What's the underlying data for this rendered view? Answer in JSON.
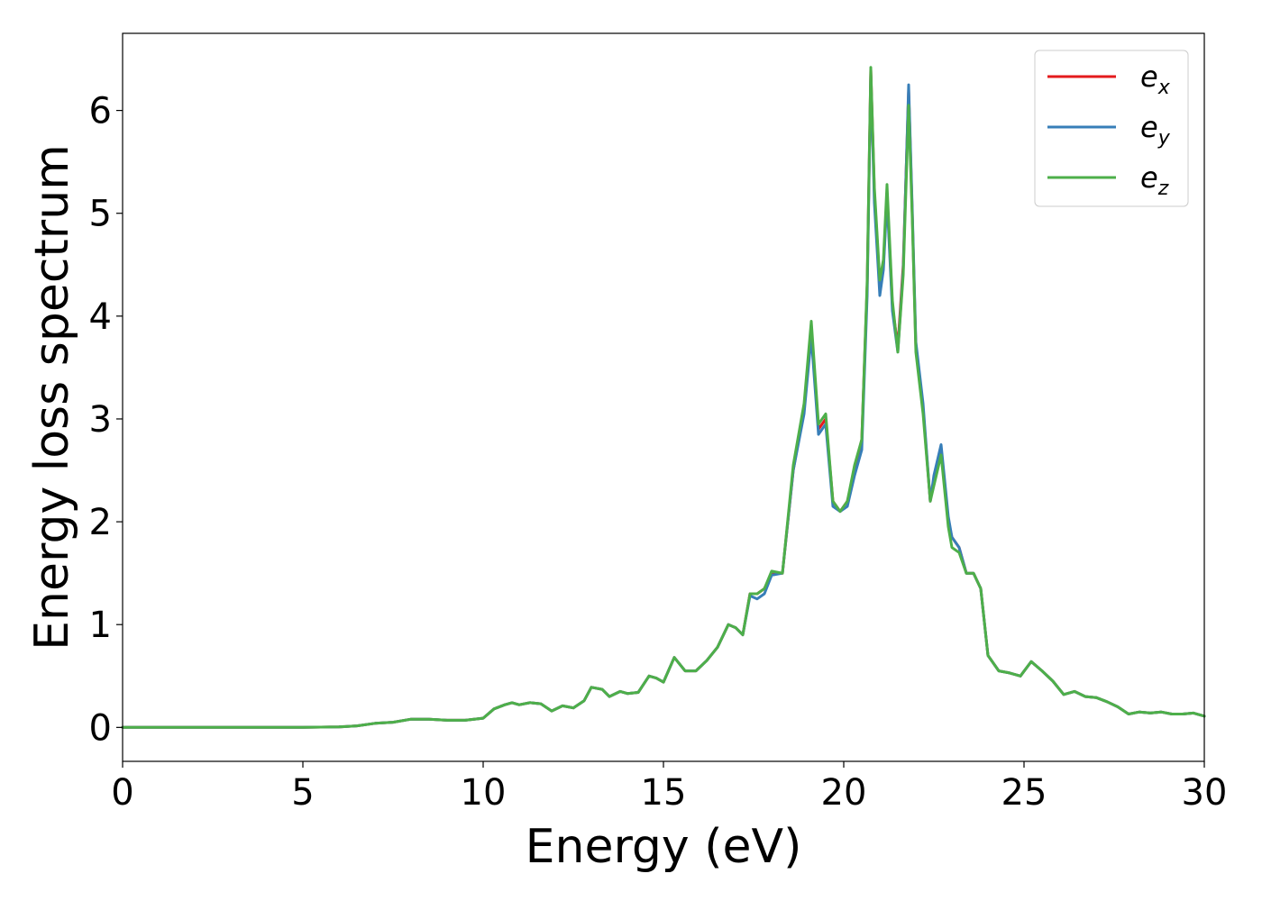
{
  "chart_data": {
    "type": "line",
    "title": "",
    "xlabel": "Energy (eV)",
    "ylabel": "Energy loss spectrum",
    "xlim": [
      0,
      30
    ],
    "ylim": [
      -0.33,
      6.75
    ],
    "xticks": [
      "0",
      "5",
      "10",
      "15",
      "20",
      "25",
      "30"
    ],
    "xtick_values": [
      0,
      5,
      10,
      15,
      20,
      25,
      30
    ],
    "yticks": [
      "0",
      "1",
      "2",
      "3",
      "4",
      "5",
      "6"
    ],
    "ytick_values": [
      0,
      1,
      2,
      3,
      4,
      5,
      6
    ],
    "grid": false,
    "legend_position": "top-right",
    "x": [
      0,
      1,
      2,
      3,
      4,
      5,
      6,
      6.5,
      7,
      7.5,
      8,
      8.5,
      9,
      9.5,
      10,
      10.3,
      10.6,
      10.8,
      11,
      11.3,
      11.6,
      11.9,
      12.2,
      12.5,
      12.8,
      13.0,
      13.3,
      13.5,
      13.8,
      14.0,
      14.3,
      14.6,
      14.8,
      15.0,
      15.3,
      15.6,
      15.9,
      16.2,
      16.5,
      16.8,
      17.0,
      17.2,
      17.4,
      17.6,
      17.8,
      18.0,
      18.3,
      18.6,
      18.9,
      19.1,
      19.3,
      19.5,
      19.7,
      19.9,
      20.1,
      20.3,
      20.5,
      20.65,
      20.75,
      20.85,
      21.0,
      21.1,
      21.2,
      21.35,
      21.5,
      21.65,
      21.8,
      21.9,
      22.0,
      22.2,
      22.4,
      22.5,
      22.7,
      22.9,
      23.0,
      23.2,
      23.4,
      23.6,
      23.8,
      24.0,
      24.3,
      24.6,
      24.9,
      25.2,
      25.5,
      25.8,
      26.1,
      26.4,
      26.7,
      27.0,
      27.3,
      27.6,
      27.9,
      28.2,
      28.5,
      28.8,
      29.1,
      29.4,
      29.7,
      30.0
    ],
    "series": [
      {
        "name": "e_x",
        "color": "#e41a1c",
        "values": [
          0,
          0,
          0,
          0,
          0,
          0,
          0.005,
          0.015,
          0.04,
          0.05,
          0.08,
          0.08,
          0.07,
          0.07,
          0.09,
          0.18,
          0.22,
          0.24,
          0.22,
          0.24,
          0.23,
          0.16,
          0.21,
          0.19,
          0.26,
          0.39,
          0.37,
          0.3,
          0.35,
          0.33,
          0.34,
          0.5,
          0.48,
          0.44,
          0.68,
          0.55,
          0.55,
          0.65,
          0.78,
          1.0,
          0.97,
          0.9,
          1.3,
          1.3,
          1.35,
          1.5,
          1.5,
          2.5,
          3.1,
          3.85,
          2.9,
          3.0,
          2.2,
          2.1,
          2.2,
          2.5,
          2.8,
          4.3,
          6.4,
          5.2,
          4.3,
          4.5,
          5.2,
          4.1,
          3.7,
          4.5,
          6.2,
          5.0,
          3.7,
          3.1,
          2.2,
          2.4,
          2.7,
          2.0,
          1.85,
          1.75,
          1.5,
          1.5,
          1.35,
          0.7,
          0.55,
          0.53,
          0.5,
          0.64,
          0.55,
          0.45,
          0.32,
          0.35,
          0.3,
          0.29,
          0.25,
          0.2,
          0.13,
          0.15,
          0.14,
          0.15,
          0.13,
          0.13,
          0.14,
          0.11
        ]
      },
      {
        "name": "e_y",
        "color": "#377eb8",
        "values": [
          0,
          0,
          0,
          0,
          0,
          0,
          0.005,
          0.015,
          0.04,
          0.05,
          0.08,
          0.08,
          0.07,
          0.07,
          0.09,
          0.18,
          0.22,
          0.24,
          0.22,
          0.24,
          0.23,
          0.16,
          0.21,
          0.19,
          0.26,
          0.39,
          0.37,
          0.3,
          0.35,
          0.33,
          0.34,
          0.5,
          0.48,
          0.44,
          0.68,
          0.55,
          0.55,
          0.65,
          0.78,
          1.0,
          0.97,
          0.9,
          1.28,
          1.25,
          1.3,
          1.48,
          1.5,
          2.5,
          3.05,
          3.8,
          2.85,
          2.95,
          2.15,
          2.1,
          2.15,
          2.45,
          2.7,
          4.2,
          6.35,
          5.1,
          4.2,
          4.45,
          5.15,
          4.05,
          3.65,
          4.45,
          6.25,
          5.05,
          3.75,
          3.15,
          2.2,
          2.45,
          2.75,
          2.05,
          1.85,
          1.75,
          1.5,
          1.5,
          1.35,
          0.7,
          0.55,
          0.53,
          0.5,
          0.64,
          0.55,
          0.45,
          0.32,
          0.35,
          0.3,
          0.29,
          0.25,
          0.2,
          0.13,
          0.15,
          0.14,
          0.15,
          0.13,
          0.13,
          0.14,
          0.11
        ]
      },
      {
        "name": "e_z",
        "color": "#4daf4a",
        "values": [
          0,
          0,
          0,
          0,
          0,
          0,
          0.005,
          0.015,
          0.04,
          0.05,
          0.08,
          0.08,
          0.07,
          0.07,
          0.09,
          0.18,
          0.22,
          0.24,
          0.22,
          0.24,
          0.23,
          0.16,
          0.21,
          0.19,
          0.26,
          0.39,
          0.37,
          0.3,
          0.35,
          0.33,
          0.34,
          0.5,
          0.48,
          0.44,
          0.68,
          0.55,
          0.55,
          0.65,
          0.78,
          1.0,
          0.97,
          0.9,
          1.3,
          1.3,
          1.35,
          1.52,
          1.5,
          2.55,
          3.15,
          3.95,
          2.95,
          3.05,
          2.2,
          2.1,
          2.2,
          2.55,
          2.8,
          4.35,
          6.42,
          5.25,
          4.35,
          4.55,
          5.28,
          4.15,
          3.65,
          4.4,
          6.05,
          4.95,
          3.65,
          3.05,
          2.2,
          2.35,
          2.65,
          1.95,
          1.75,
          1.7,
          1.5,
          1.5,
          1.35,
          0.7,
          0.55,
          0.53,
          0.5,
          0.64,
          0.55,
          0.45,
          0.32,
          0.35,
          0.3,
          0.29,
          0.25,
          0.2,
          0.13,
          0.15,
          0.14,
          0.15,
          0.13,
          0.13,
          0.14,
          0.11
        ]
      }
    ],
    "legend": [
      {
        "base": "e",
        "sub": "x",
        "color": "#e41a1c"
      },
      {
        "base": "e",
        "sub": "y",
        "color": "#377eb8"
      },
      {
        "base": "e",
        "sub": "z",
        "color": "#4daf4a"
      }
    ]
  }
}
